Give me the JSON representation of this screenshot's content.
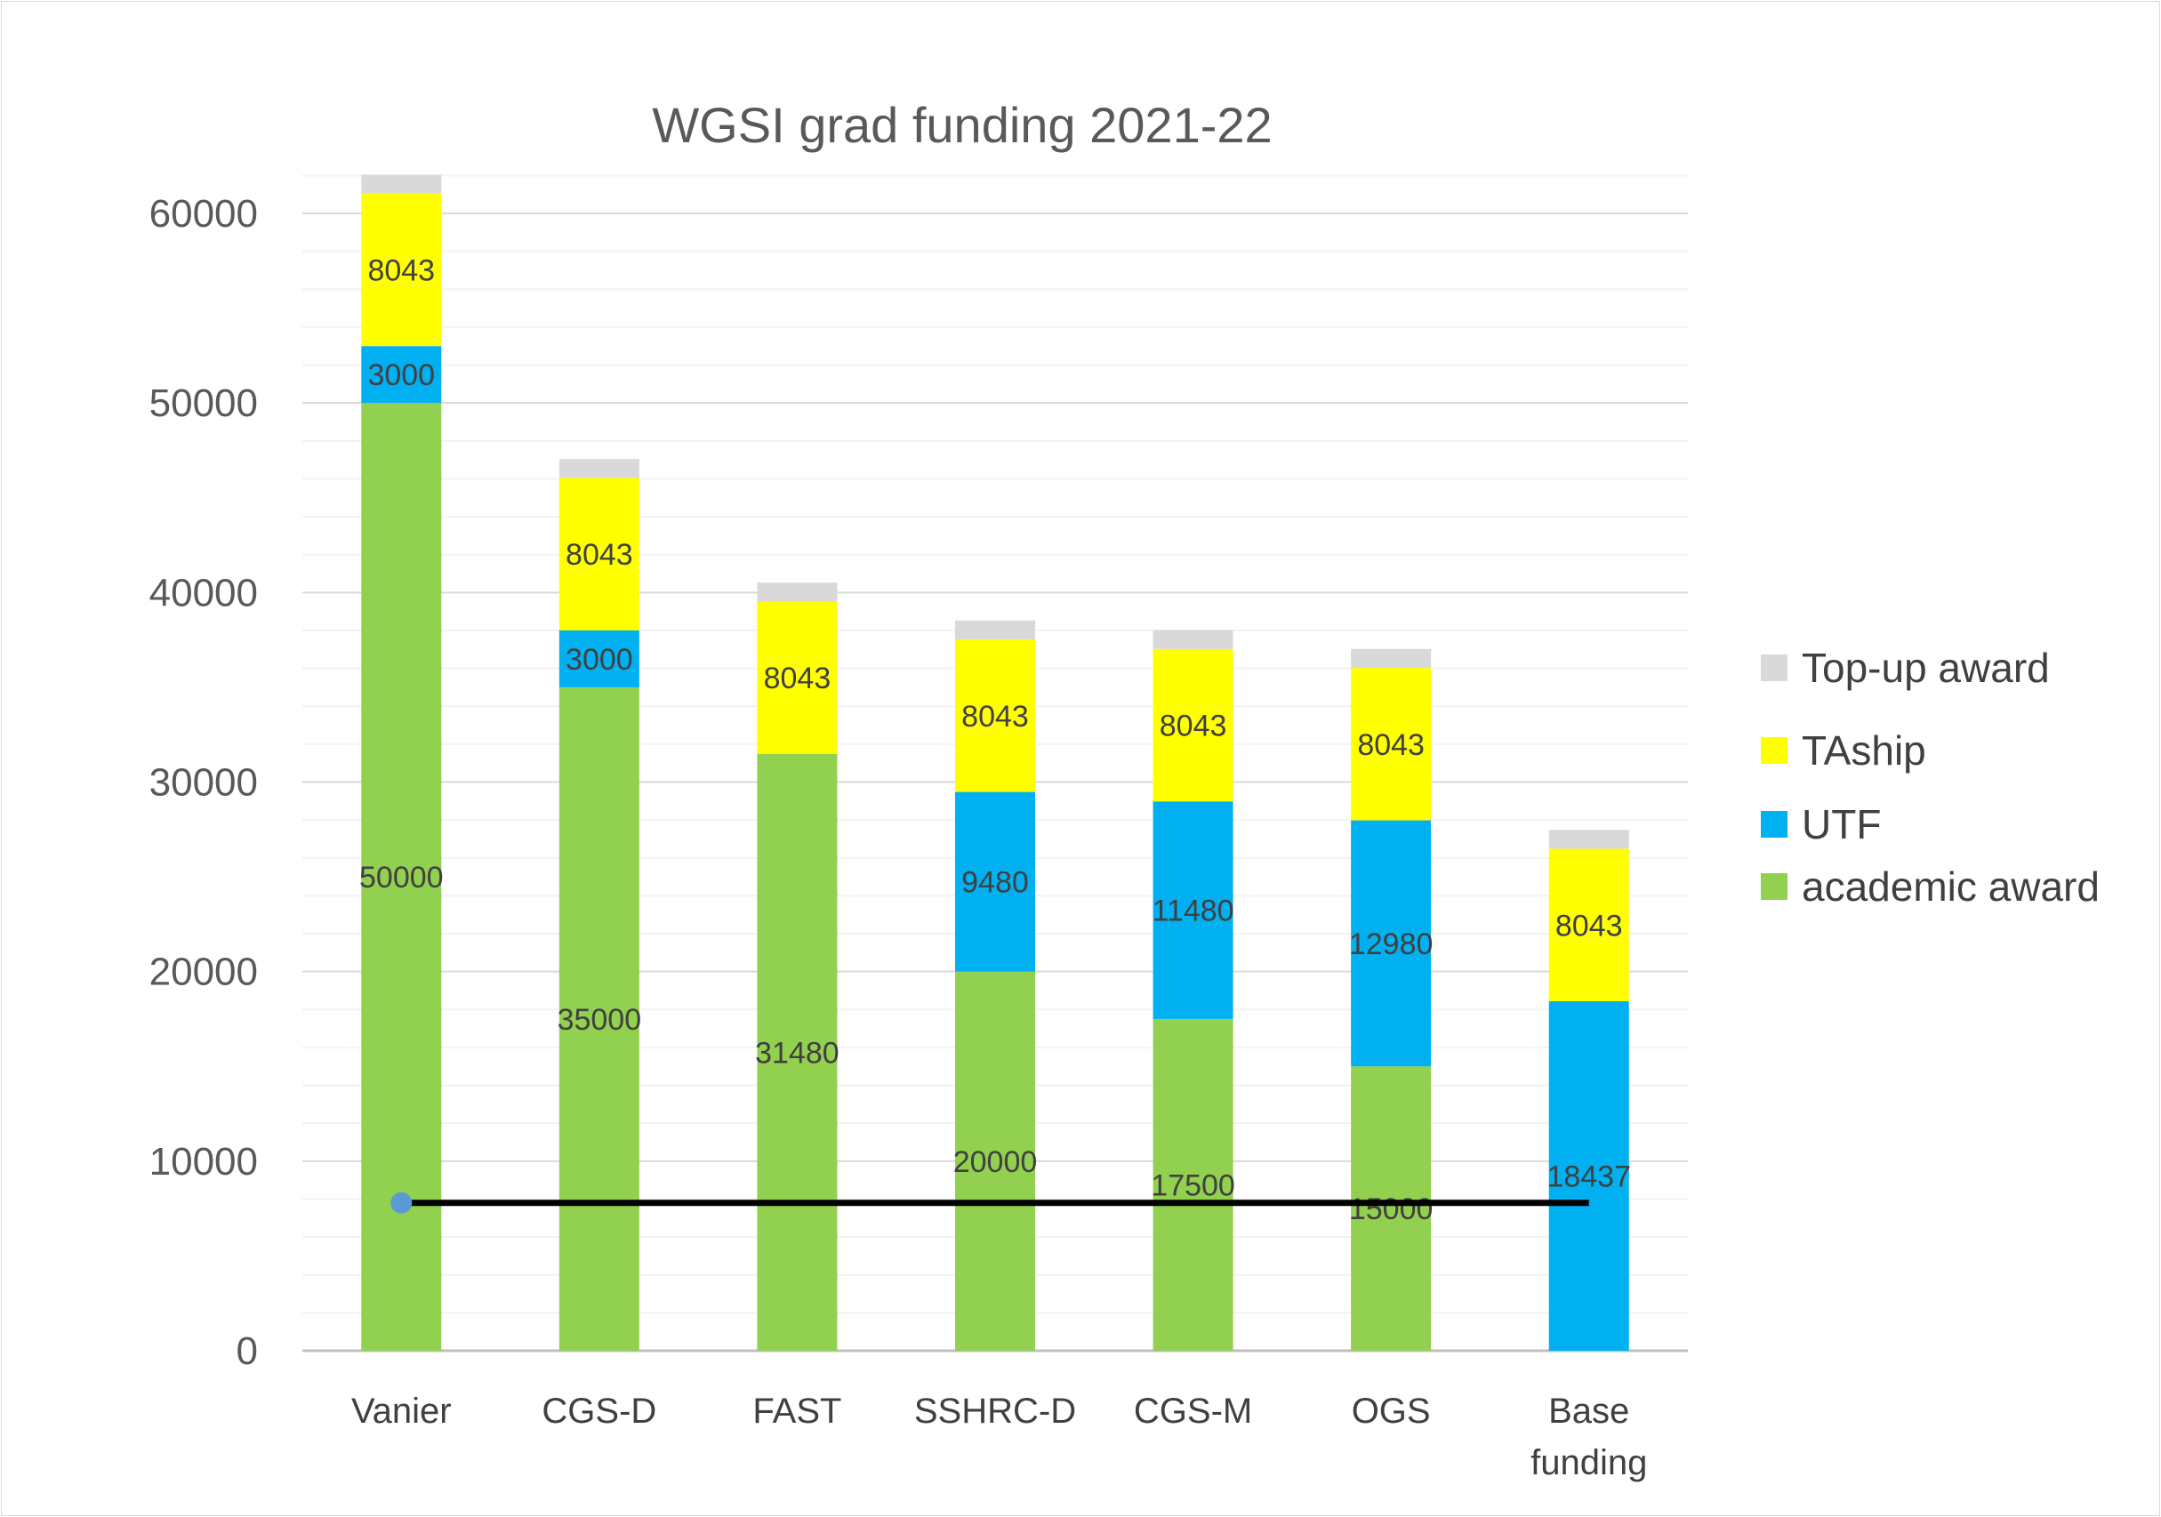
{
  "chart_data": {
    "type": "bar",
    "stacked": true,
    "title": "WGSI grad funding 2021-22",
    "xlabel": "",
    "ylabel": "",
    "ylim": [
      0,
      62000
    ],
    "yticks": [
      0,
      10000,
      20000,
      30000,
      40000,
      50000,
      60000
    ],
    "ytick_labels": [
      "0",
      "10000",
      "20000",
      "30000",
      "40000",
      "50000",
      "60000"
    ],
    "categories": [
      "Vanier",
      "CGS-D",
      "FAST",
      "SSHRC-D",
      "CGS-M",
      "OGS",
      "Base funding"
    ],
    "category_lines": [
      [
        "Vanier"
      ],
      [
        "CGS-D"
      ],
      [
        "FAST"
      ],
      [
        "SSHRC-D"
      ],
      [
        "CGS-M"
      ],
      [
        "OGS"
      ],
      [
        "Base",
        "funding"
      ]
    ],
    "grid": true,
    "legend_position": "right",
    "series": [
      {
        "name": "academic award",
        "color": "#92d050",
        "values": [
          50000,
          35000,
          31480,
          20000,
          17500,
          15000,
          0
        ],
        "labels": [
          "50000",
          "35000",
          "31480",
          "20000",
          "17500",
          "15000",
          ""
        ]
      },
      {
        "name": "UTF",
        "color": "#00b0f0",
        "values": [
          3000,
          3000,
          0,
          9480,
          11480,
          12980,
          18437
        ],
        "labels": [
          "3000",
          "3000",
          "",
          "9480",
          "11480",
          "12980",
          "18437"
        ]
      },
      {
        "name": "TAship",
        "color": "#ffff00",
        "values": [
          8043,
          8043,
          8043,
          8043,
          8043,
          8043,
          8043
        ],
        "labels": [
          "8043",
          "8043",
          "8043",
          "8043",
          "8043",
          "8043",
          "8043"
        ]
      },
      {
        "name": "Top-up award",
        "color": "#d9d9d9",
        "values": [
          1000,
          1000,
          1000,
          1000,
          1000,
          1000,
          1000
        ],
        "labels": [
          "",
          "",
          "",
          "",
          "",
          "",
          ""
        ]
      }
    ],
    "legend_order": [
      "Top-up award",
      "TAship",
      "UTF",
      "academic award"
    ],
    "reference_line": {
      "value": 7800,
      "from_category": "Vanier",
      "to_category": "Base funding",
      "color": "#000000",
      "marker_color": "#5b9bd5"
    }
  }
}
